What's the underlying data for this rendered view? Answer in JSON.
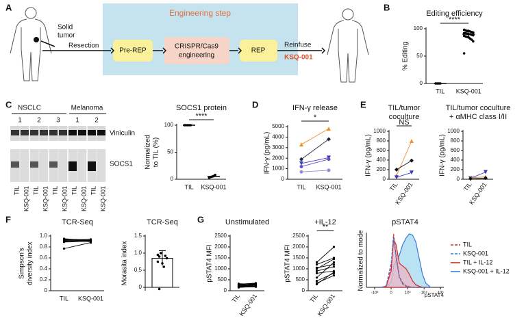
{
  "panel_labels": [
    "A",
    "B",
    "C",
    "D",
    "E",
    "F",
    "G"
  ],
  "diagram": {
    "solid_tumor": [
      "Solid",
      "tumor"
    ],
    "resection": "Resection",
    "engineering_step": "Engineering step",
    "steps": [
      [
        "Pre-REP"
      ],
      [
        "CRISPR/Cas9",
        "engineering"
      ],
      [
        "REP"
      ]
    ],
    "reinfuse": "Reinfuse",
    "product": "KSQ-001"
  },
  "blot": {
    "groups": [
      "NSCLC",
      "Melanoma"
    ],
    "lane_numbers": [
      "1",
      "2",
      "3",
      "1",
      "2"
    ],
    "rows": [
      "Viniculin",
      "SOCS1"
    ],
    "lane_labels": [
      "TIL",
      "KSQ-001",
      "TIL",
      "KSQ-001",
      "TIL",
      "KSQ-001",
      "TIL",
      "KSQ-001",
      "TIL",
      "KSQ-001"
    ]
  },
  "chart_data": [
    {
      "type": "dot",
      "title": "Editing efficiency",
      "ylabel": "% Editing",
      "categories": [
        "TIL",
        "KSQ-001"
      ],
      "points": [
        [
          0,
          0,
          0,
          0
        ],
        [
          98,
          97,
          96,
          96,
          95,
          94,
          93,
          92,
          92,
          91,
          90,
          90,
          89,
          88,
          87,
          86,
          85,
          84,
          82,
          80,
          77,
          55
        ]
      ],
      "means": [
        0,
        90
      ],
      "errors": [
        0,
        5
      ],
      "ylim": [
        0,
        100
      ],
      "yticks": [
        0,
        50,
        100
      ],
      "significance": "****",
      "color": "#000000"
    },
    {
      "type": "dot",
      "title": "SOCS1 protein",
      "ylabel": [
        "Normalized",
        "to TIL (%)"
      ],
      "categories": [
        "TIL",
        "KSQ-001"
      ],
      "points": [
        [
          100,
          100,
          100,
          100,
          100
        ],
        [
          3,
          4,
          5,
          6,
          8
        ]
      ],
      "means": [
        100,
        5
      ],
      "errors": [
        0,
        2
      ],
      "ylim": [
        0,
        100
      ],
      "yticks": [
        0,
        50,
        100
      ],
      "significance": "****",
      "color": "#000000"
    },
    {
      "type": "paired",
      "title": "IFN-γ release",
      "ylabel": "IFN-γ (pg/mL)",
      "categories": [
        "TIL",
        "KSQ-001"
      ],
      "ylim": [
        0,
        5000
      ],
      "yticks": [
        0,
        1000,
        2000,
        3000,
        4000,
        5000
      ],
      "significance": "*",
      "series": [
        {
          "color": "#f28e2b",
          "marker": "triangle",
          "values": [
            3300,
            4800
          ]
        },
        {
          "color": "#1f2a44",
          "marker": "diamond",
          "values": [
            1900,
            3800
          ]
        },
        {
          "color": "#3b3bc4",
          "marker": "triangle-down",
          "values": [
            1500,
            2050
          ]
        },
        {
          "color": "#6b4fbf",
          "marker": "circle",
          "values": [
            1200,
            1900
          ]
        },
        {
          "color": "#9a8ad0",
          "marker": "circle",
          "values": [
            700,
            850
          ]
        }
      ]
    },
    {
      "type": "paired",
      "title": [
        "TIL/tumor",
        "coculture"
      ],
      "ylabel": "IFN-γ (pg/mL)",
      "categories": [
        "TIL",
        "KSQ-001"
      ],
      "rotate_x": true,
      "ylim": [
        0,
        1000
      ],
      "yticks": [
        0,
        200,
        400,
        600,
        800,
        1000
      ],
      "significance": "NS",
      "series": [
        {
          "color": "#f28e2b",
          "marker": "triangle",
          "values": [
            80,
            800
          ]
        },
        {
          "color": "#111111",
          "marker": "diamond",
          "values": [
            200,
            390
          ]
        },
        {
          "color": "#3b3bc4",
          "marker": "triangle-down",
          "values": [
            40,
            140
          ]
        }
      ]
    },
    {
      "type": "paired",
      "title": [
        "TIL/tumor coculture",
        "+ αMHC class I/II"
      ],
      "ylabel": "IFN-γ (pg/mL)",
      "categories": [
        "TIL",
        "KSQ-001"
      ],
      "rotate_x": true,
      "ylim": [
        0,
        1000
      ],
      "yticks": [
        0,
        200,
        400,
        600,
        800,
        1000
      ],
      "series": [
        {
          "color": "#3b3bc4",
          "marker": "triangle-down",
          "values": [
            20,
            150
          ]
        },
        {
          "color": "#f28e2b",
          "marker": "triangle",
          "values": [
            30,
            50
          ]
        },
        {
          "color": "#111111",
          "marker": "diamond",
          "values": [
            10,
            25
          ]
        }
      ]
    },
    {
      "type": "paired",
      "title": "TCR-Seq",
      "ylabel": [
        "Simpson's",
        "diversity index"
      ],
      "categories": [
        "TIL",
        "KSQ-001"
      ],
      "ylim": [
        0,
        1
      ],
      "yticks": [
        0,
        0.2,
        0.4,
        0.6,
        0.8,
        {
          "value": 1,
          "label": "1.0"
        }
      ],
      "color": "#000000",
      "series": [
        {
          "values": [
            0.94,
            0.92
          ]
        },
        {
          "values": [
            0.93,
            0.94
          ]
        },
        {
          "values": [
            0.92,
            0.91
          ]
        },
        {
          "values": [
            0.91,
            0.93
          ]
        },
        {
          "values": [
            0.95,
            0.92
          ]
        },
        {
          "values": [
            0.9,
            0.92
          ]
        },
        {
          "values": [
            0.89,
            0.9
          ]
        },
        {
          "values": [
            0.77,
            0.88
          ]
        }
      ]
    },
    {
      "type": "bar",
      "title": "TCR-Seq",
      "ylabel": "Morasita index",
      "values": [
        0.85
      ],
      "errors": [
        0.22
      ],
      "points": [
        [
          0.95,
          0.9,
          1.0,
          0.7,
          0.6,
          0.92,
          0.85,
          0.75,
          -0.05
        ]
      ],
      "ylim": [
        -0.1,
        1.5
      ],
      "yticks": [
        0,
        0.5,
        {
          "value": 1,
          "label": "1.0"
        },
        1.5
      ],
      "color": "#000000"
    },
    {
      "type": "paired",
      "title": "Unstimulated",
      "ylabel": "pSTAT4 MFI",
      "categories": [
        "TIL",
        "KSQ-001"
      ],
      "rotate_x": true,
      "ylim": [
        0,
        2500
      ],
      "yticks": [
        0,
        500,
        1000,
        1500,
        2000,
        2500
      ],
      "color": "#000000",
      "series": [
        {
          "values": [
            150,
            200
          ]
        },
        {
          "values": [
            200,
            250
          ]
        },
        {
          "values": [
            250,
            300
          ]
        },
        {
          "values": [
            300,
            350
          ]
        },
        {
          "values": [
            180,
            220
          ]
        },
        {
          "values": [
            220,
            280
          ]
        },
        {
          "values": [
            280,
            330
          ]
        },
        {
          "values": [
            160,
            180
          ]
        },
        {
          "values": [
            240,
            260
          ]
        },
        {
          "values": [
            320,
            300
          ]
        }
      ]
    },
    {
      "type": "paired",
      "title": "+IL-12",
      "ylabel": "pSTAT4 MFI",
      "categories": [
        "TIL",
        "KSQ-001"
      ],
      "rotate_x": true,
      "ylim": [
        0,
        2500
      ],
      "yticks": [
        0,
        500,
        1000,
        1500,
        2000,
        2500
      ],
      "significance": "**",
      "color": "#000000",
      "series": [
        {
          "values": [
            1300,
            2000
          ]
        },
        {
          "values": [
            1200,
            1500
          ]
        },
        {
          "values": [
            1050,
            1200
          ]
        },
        {
          "values": [
            1000,
            1450
          ]
        },
        {
          "values": [
            900,
            1100
          ]
        },
        {
          "values": [
            800,
            900
          ]
        },
        {
          "values": [
            600,
            1300
          ]
        },
        {
          "values": [
            450,
            800
          ]
        },
        {
          "values": [
            350,
            700
          ]
        },
        {
          "values": [
            300,
            850
          ]
        }
      ]
    },
    {
      "type": "density",
      "title": "pSTAT4",
      "ylabel": "Normalized to mode",
      "xlabel": "pSTAT4",
      "legend": "right",
      "xlim": [
        -1.5,
        3.2
      ],
      "ylim": [
        0,
        100
      ],
      "xticks": [
        {
          "value": -1,
          "label": "-10³"
        },
        0,
        {
          "value": 1,
          "label": "10³"
        },
        {
          "value": 2,
          "label": "10⁴"
        },
        {
          "value": 3,
          "label": "10⁵"
        }
      ],
      "x": [
        -0.6,
        -0.3,
        0,
        0.15,
        0.3,
        0.5,
        0.7,
        0.9,
        1.1,
        1.3,
        1.5,
        1.7,
        1.9,
        2.1,
        2.4
      ],
      "series": [
        {
          "name": "KSQ-001 + IL-12",
          "color": "#3a7bd5",
          "fill": "#a8dcf0",
          "dash": false,
          "values": [
            0,
            1,
            10,
            40,
            50,
            60,
            80,
            92,
            100,
            98,
            85,
            55,
            25,
            8,
            0
          ]
        },
        {
          "name": "TIL + IL-12",
          "color": "#d62728",
          "fill": "#e8b8c8",
          "dash": false,
          "values": [
            0,
            2,
            30,
            90,
            80,
            45,
            40,
            35,
            25,
            12,
            5,
            2,
            0,
            0,
            0
          ]
        },
        {
          "name": "TIL",
          "color": "#d62728",
          "dash": true,
          "values": [
            0,
            2,
            40,
            100,
            60,
            20,
            8,
            3,
            1,
            0,
            0,
            0,
            0,
            0,
            0
          ]
        },
        {
          "name": "KSQ-001",
          "color": "#3a7bd5",
          "dash": true,
          "values": [
            0,
            3,
            45,
            95,
            55,
            18,
            6,
            2,
            1,
            0,
            0,
            0,
            0,
            0,
            0
          ]
        }
      ]
    }
  ]
}
